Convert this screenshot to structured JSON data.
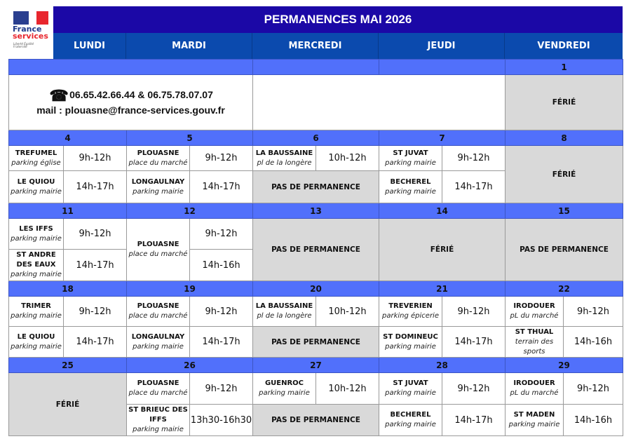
{
  "logo": {
    "line1": "France",
    "line2": "services",
    "motto": "Liberté Égalité Fraternité"
  },
  "title": "PERMANENCES MAI 2026",
  "days": [
    "LUNDI",
    "MARDI",
    "MERCREDI",
    "JEUDI",
    "VENDREDI"
  ],
  "colors": {
    "title_bg": "#1b08a6",
    "day_header_bg": "#0b4aae",
    "date_row_bg": "#5170fb",
    "closed_bg": "#d9d9d9"
  },
  "first_week": {
    "dates": [
      "",
      "",
      "",
      "1"
    ],
    "contact": {
      "icon": "telephone-icon",
      "phones": "06.65.42.66.44 & 06.75.78.07.07",
      "mail": "mail : plouasne@france-services.gouv.fr"
    },
    "friday_label": "FÉRIÉ"
  },
  "weeks": [
    {
      "dates": [
        "4",
        "5",
        "6",
        "7",
        "8"
      ],
      "days": [
        {
          "am": {
            "place": "TREFUMEL",
            "sub": "parking église",
            "time": "9h-12h"
          },
          "pm": {
            "place": "LE QUIOU",
            "sub": "parking mairie",
            "time": "14h-17h"
          }
        },
        {
          "am": {
            "place": "PLOUASNE",
            "sub": "place du marché",
            "time": "9h-12h"
          },
          "pm": {
            "place": "LONGAULNAY",
            "sub": "parking mairie",
            "time": "14h-17h"
          }
        },
        {
          "am": {
            "place": "LA BAUSSAINE",
            "sub": "pl de la longère",
            "time": "10h-12h"
          },
          "pm": {
            "label": "PAS DE PERMANENCE"
          }
        },
        {
          "am": {
            "place": "ST JUVAT",
            "sub": "parking mairie",
            "time": "9h-12h"
          },
          "pm": {
            "place": "BECHEREL",
            "sub": "parking mairie",
            "time": "14h-17h"
          }
        },
        {
          "label": "FÉRIÉ"
        }
      ]
    },
    {
      "dates": [
        "11",
        "12",
        "13",
        "14",
        "15"
      ],
      "days": [
        {
          "am": {
            "place": "LES IFFS",
            "sub": "parking mairie",
            "time": "9h-12h"
          },
          "pm": {
            "place": "ST ANDRE DES EAUX",
            "sub": "parking mairie",
            "time": "14h-17h"
          }
        },
        {
          "merged": {
            "place": "PLOUASNE",
            "sub": "place du marché",
            "times": [
              "9h-12h",
              "14h-16h"
            ]
          }
        },
        {
          "label": "PAS DE PERMANENCE"
        },
        {
          "label": "FÉRIÉ"
        },
        {
          "label": "PAS DE PERMANENCE"
        }
      ]
    },
    {
      "dates": [
        "18",
        "19",
        "20",
        "21",
        "22"
      ],
      "days": [
        {
          "am": {
            "place": "TRIMER",
            "sub": "parking mairie",
            "time": "9h-12h"
          },
          "pm": {
            "place": "LE QUIOU",
            "sub": "parking mairie",
            "time": "14h-17h"
          }
        },
        {
          "am": {
            "place": "PLOUASNE",
            "sub": "place du marché",
            "time": "9h-12h"
          },
          "pm": {
            "place": "LONGAULNAY",
            "sub": "parking mairie",
            "time": "14h-17h"
          }
        },
        {
          "am": {
            "place": "LA BAUSSAINE",
            "sub": "pl de la longère",
            "time": "10h-12h"
          },
          "pm": {
            "label": "PAS DE PERMANENCE"
          }
        },
        {
          "am": {
            "place": "TREVERIEN",
            "sub": "parking épicerie",
            "time": "9h-12h"
          },
          "pm": {
            "place": "ST DOMINEUC",
            "sub": "parking mairie",
            "time": "14h-17h"
          }
        },
        {
          "am": {
            "place": "IRODOUER",
            "sub": "pL du marché",
            "time": "9h-12h"
          },
          "pm": {
            "place": "ST THUAL",
            "sub": "terrain des sports",
            "time": "14h-16h"
          }
        }
      ]
    },
    {
      "dates": [
        "25",
        "26",
        "27",
        "28",
        "29"
      ],
      "days": [
        {
          "label": "FÉRIÉ"
        },
        {
          "am": {
            "place": "PLOUASNE",
            "sub": "place du marché",
            "time": "9h-12h"
          },
          "pm": {
            "place": "ST BRIEUC DES IFFS",
            "sub": "parking mairie",
            "time": "13h30-16h30"
          }
        },
        {
          "am": {
            "place": "GUENROC",
            "sub": "parking mairie",
            "time": "10h-12h"
          },
          "pm": {
            "label": "PAS DE PERMANENCE"
          }
        },
        {
          "am": {
            "place": "ST JUVAT",
            "sub": "parking mairie",
            "time": "9h-12h"
          },
          "pm": {
            "place": "BECHEREL",
            "sub": "parking mairie",
            "time": "14h-17h"
          }
        },
        {
          "am": {
            "place": "IRODOUER",
            "sub": "pL du marché",
            "time": "9h-12h"
          },
          "pm": {
            "place": "ST MADEN",
            "sub": "parking mairie",
            "time": "14h-16h"
          }
        }
      ]
    }
  ]
}
